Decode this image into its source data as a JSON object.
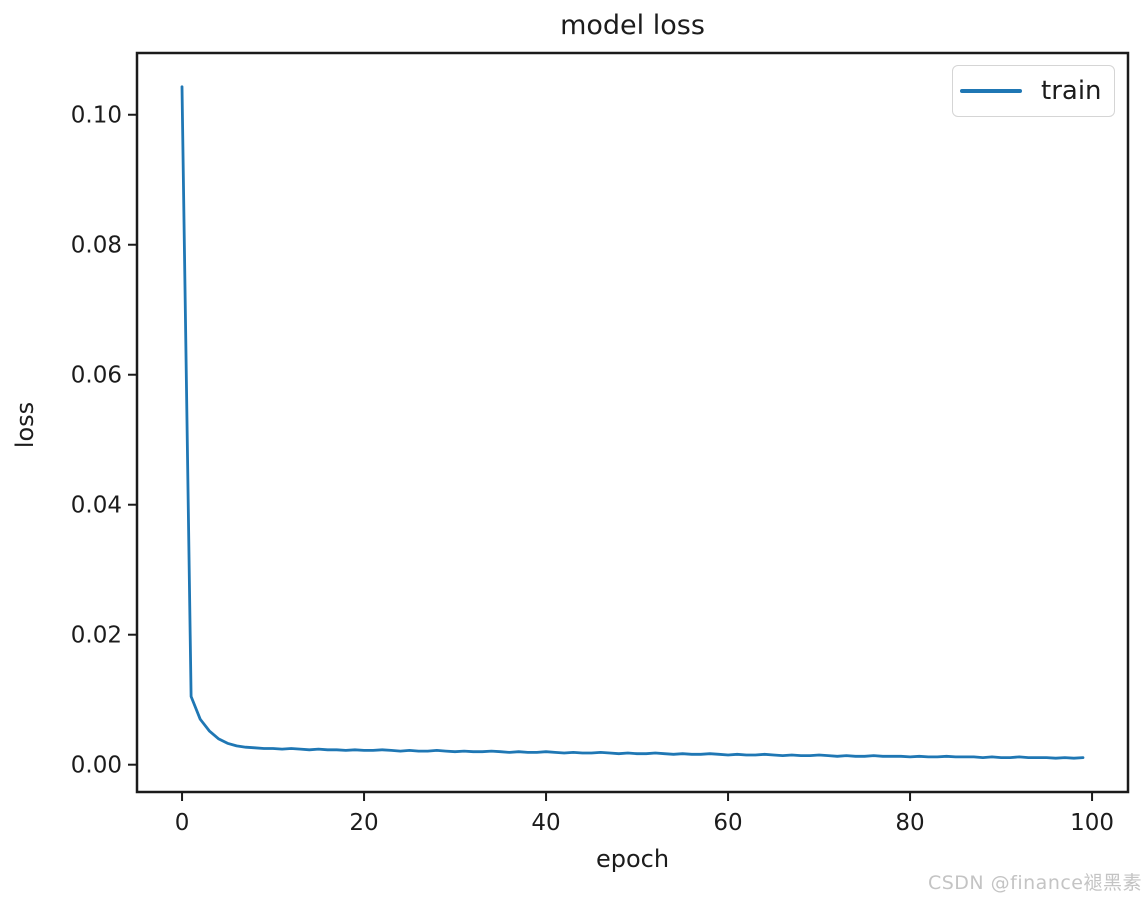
{
  "page": {
    "watermark": "CSDN @finance褪黑素"
  },
  "chart_data": {
    "type": "line",
    "title": "model loss",
    "xlabel": "epoch",
    "ylabel": "loss",
    "grid": false,
    "legend_position": "upper right",
    "legend": [
      "train"
    ],
    "xlim": [
      -4.95,
      103.95
    ],
    "ylim": [
      -0.0042,
      0.1095
    ],
    "xticks": [
      0,
      20,
      40,
      60,
      80,
      100
    ],
    "yticks": [
      0,
      0.02,
      0.04,
      0.06,
      0.08,
      0.1
    ],
    "ytick_labels": [
      "0.00",
      "0.02",
      "0.04",
      "0.06",
      "0.08",
      "0.10"
    ],
    "x": [
      0,
      1,
      2,
      3,
      4,
      5,
      6,
      7,
      8,
      9,
      10,
      11,
      12,
      13,
      14,
      15,
      16,
      17,
      18,
      19,
      20,
      21,
      22,
      23,
      24,
      25,
      26,
      27,
      28,
      29,
      30,
      31,
      32,
      33,
      34,
      35,
      36,
      37,
      38,
      39,
      40,
      41,
      42,
      43,
      44,
      45,
      46,
      47,
      48,
      49,
      50,
      51,
      52,
      53,
      54,
      55,
      56,
      57,
      58,
      59,
      60,
      61,
      62,
      63,
      64,
      65,
      66,
      67,
      68,
      69,
      70,
      71,
      72,
      73,
      74,
      75,
      76,
      77,
      78,
      79,
      80,
      81,
      82,
      83,
      84,
      85,
      86,
      87,
      88,
      89,
      90,
      91,
      92,
      93,
      94,
      95,
      96,
      97,
      98,
      99
    ],
    "series": [
      {
        "name": "train",
        "color": "#1f77b4",
        "values": [
          0.1043,
          0.0105,
          0.007,
          0.0052,
          0.004,
          0.0033,
          0.0029,
          0.0027,
          0.0026,
          0.0025,
          0.0025,
          0.0024,
          0.0025,
          0.0024,
          0.0023,
          0.0024,
          0.0023,
          0.0023,
          0.0022,
          0.0023,
          0.0022,
          0.0022,
          0.0023,
          0.0022,
          0.0021,
          0.0022,
          0.0021,
          0.0021,
          0.0022,
          0.0021,
          0.002,
          0.0021,
          0.002,
          0.002,
          0.0021,
          0.002,
          0.0019,
          0.002,
          0.0019,
          0.0019,
          0.002,
          0.0019,
          0.0018,
          0.0019,
          0.0018,
          0.0018,
          0.0019,
          0.0018,
          0.0017,
          0.0018,
          0.0017,
          0.0017,
          0.0018,
          0.0017,
          0.0016,
          0.0017,
          0.0016,
          0.0016,
          0.0017,
          0.0016,
          0.0015,
          0.0016,
          0.0015,
          0.0015,
          0.0016,
          0.0015,
          0.0014,
          0.0015,
          0.0014,
          0.0014,
          0.0015,
          0.0014,
          0.0013,
          0.0014,
          0.0013,
          0.0013,
          0.0014,
          0.0013,
          0.0013,
          0.0013,
          0.0012,
          0.0013,
          0.0012,
          0.0012,
          0.0013,
          0.0012,
          0.0012,
          0.0012,
          0.0011,
          0.0012,
          0.0011,
          0.0011,
          0.0012,
          0.0011,
          0.0011,
          0.0011,
          0.001,
          0.0011,
          0.001,
          0.0011
        ]
      }
    ]
  }
}
